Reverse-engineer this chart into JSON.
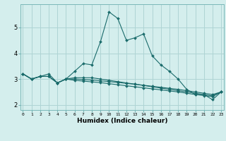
{
  "xlabel": "Humidex (Indice chaleur)",
  "bg_color": "#d4eeed",
  "grid_color": "#aed4d4",
  "line_color": "#1a6b6b",
  "xdata": [
    0,
    1,
    2,
    3,
    4,
    5,
    6,
    7,
    8,
    9,
    10,
    11,
    12,
    13,
    14,
    15,
    16,
    17,
    18,
    19,
    20,
    21,
    22,
    23
  ],
  "line1": [
    3.2,
    3.0,
    3.1,
    3.2,
    2.85,
    3.0,
    3.3,
    3.6,
    3.55,
    4.45,
    5.6,
    5.35,
    4.5,
    4.6,
    4.75,
    3.9,
    3.55,
    3.3,
    3.0,
    2.6,
    2.4,
    2.4,
    2.2,
    2.5
  ],
  "line2": [
    3.2,
    3.0,
    3.1,
    3.1,
    2.85,
    3.0,
    3.05,
    3.05,
    3.05,
    3.0,
    2.95,
    2.9,
    2.85,
    2.8,
    2.75,
    2.7,
    2.65,
    2.6,
    2.55,
    2.5,
    2.45,
    2.4,
    2.35,
    2.5
  ],
  "line3": [
    3.2,
    3.0,
    3.1,
    3.1,
    2.85,
    3.0,
    3.0,
    2.98,
    2.96,
    2.93,
    2.9,
    2.87,
    2.83,
    2.8,
    2.76,
    2.72,
    2.68,
    2.64,
    2.6,
    2.55,
    2.5,
    2.45,
    2.4,
    2.5
  ],
  "line4": [
    3.2,
    3.0,
    3.1,
    3.1,
    2.85,
    3.0,
    2.95,
    2.92,
    2.89,
    2.86,
    2.82,
    2.78,
    2.74,
    2.7,
    2.66,
    2.62,
    2.58,
    2.54,
    2.5,
    2.45,
    2.4,
    2.36,
    2.32,
    2.5
  ],
  "ylim": [
    1.8,
    5.9
  ],
  "yticks": [
    2,
    3,
    4,
    5
  ],
  "xticks": [
    0,
    1,
    2,
    3,
    4,
    5,
    6,
    7,
    8,
    9,
    10,
    11,
    12,
    13,
    14,
    15,
    16,
    17,
    18,
    19,
    20,
    21,
    22,
    23
  ],
  "xlim": [
    -0.3,
    23.3
  ]
}
